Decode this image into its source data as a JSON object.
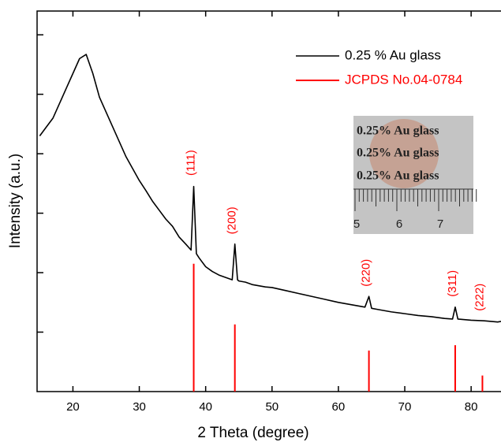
{
  "chart_data": {
    "type": "line",
    "x_label": "2 Theta (degree)",
    "y_label": "Intensity (a.u.)",
    "xlim": [
      14.6,
      84.5
    ],
    "ylim": [
      0,
      6.4
    ],
    "xticks": [
      20,
      30,
      40,
      50,
      60,
      70,
      80
    ],
    "yticks": [
      1,
      2,
      3,
      4,
      5,
      6
    ],
    "legend": "upper right",
    "x": [
      15,
      16,
      17,
      18,
      19,
      20,
      21,
      22,
      23,
      24,
      25,
      26,
      27,
      28,
      29,
      30,
      31,
      32,
      33,
      34,
      35,
      36,
      37,
      37.8,
      38.2,
      38.6,
      39,
      40,
      41,
      42,
      43,
      44,
      44.4,
      44.8,
      45,
      46,
      47,
      48,
      49,
      50,
      52,
      54,
      56,
      58,
      60,
      62,
      64,
      64.6,
      65,
      66,
      68,
      70,
      72,
      74,
      76,
      77.2,
      77.6,
      78,
      80,
      82,
      84,
      84.5
    ],
    "series": [
      {
        "name": "0.25 % Au glass",
        "color": "#000000",
        "values": [
          4.3,
          4.45,
          4.6,
          4.85,
          5.1,
          5.35,
          5.6,
          5.67,
          5.35,
          4.95,
          4.7,
          4.45,
          4.2,
          3.95,
          3.75,
          3.55,
          3.38,
          3.2,
          3.05,
          2.9,
          2.78,
          2.6,
          2.48,
          2.38,
          3.45,
          2.32,
          2.25,
          2.1,
          2.02,
          1.96,
          1.92,
          1.88,
          2.48,
          1.88,
          1.86,
          1.84,
          1.8,
          1.78,
          1.76,
          1.75,
          1.7,
          1.65,
          1.6,
          1.55,
          1.5,
          1.46,
          1.42,
          1.6,
          1.4,
          1.38,
          1.34,
          1.31,
          1.28,
          1.26,
          1.23,
          1.22,
          1.42,
          1.22,
          1.2,
          1.19,
          1.17,
          1.18
        ]
      }
    ],
    "reference": {
      "name": "JCPDS No.04-0784",
      "color": "#ff0000",
      "x": [
        38.2,
        44.4,
        64.6,
        77.6,
        81.7
      ],
      "values": [
        2.15,
        1.13,
        0.69,
        0.78,
        0.27
      ],
      "labels": [
        "(111)",
        "(200)",
        "(220)",
        "(311)",
        "(222)"
      ]
    }
  },
  "inset": {
    "lines": [
      "0.25% Au glass",
      "0.25% Au glass",
      "0.25% Au glass"
    ],
    "ruler_labels": [
      "5",
      "6",
      "7"
    ]
  }
}
